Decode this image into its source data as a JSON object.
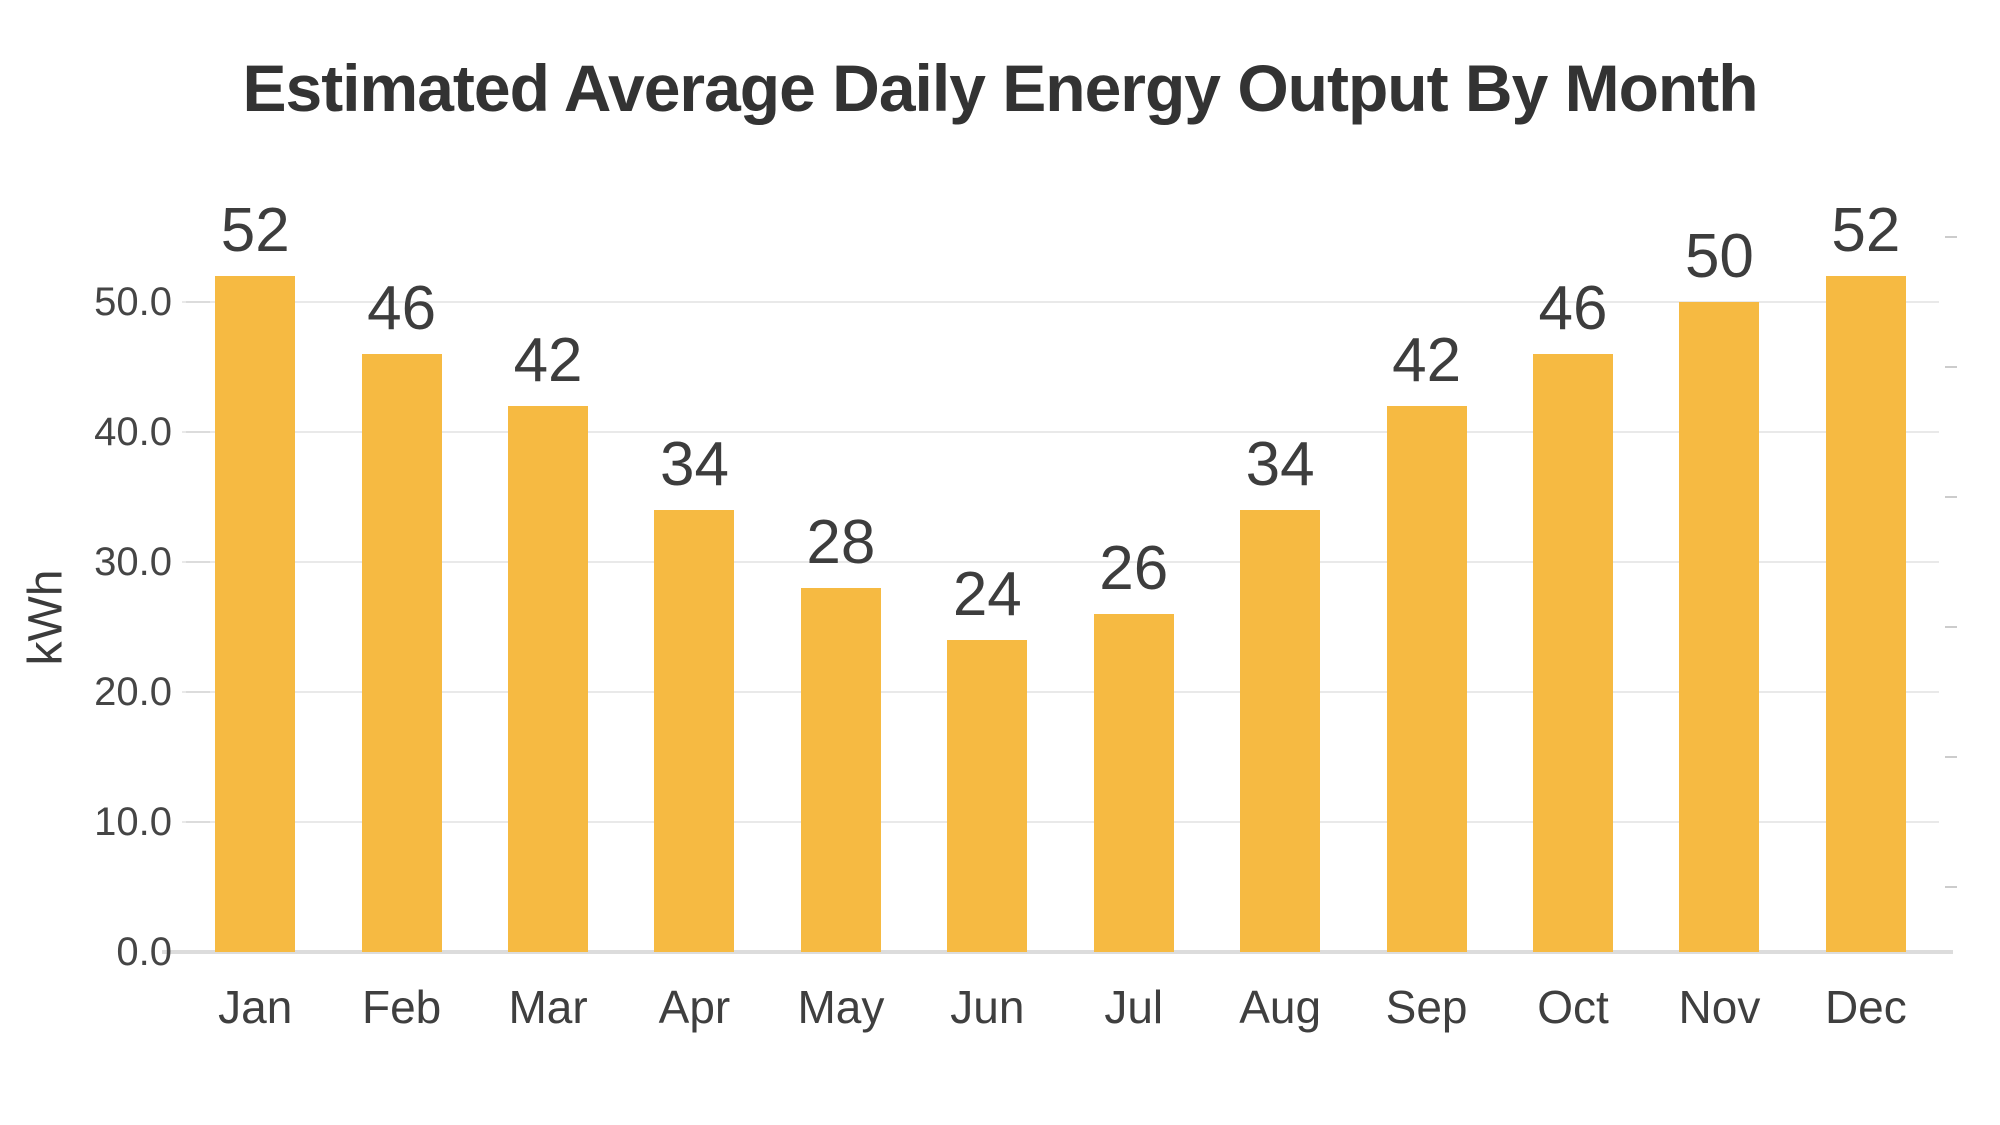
{
  "page": {
    "background_color": "#ffffff"
  },
  "chart_data": {
    "type": "bar",
    "title": "Estimated Average Daily Energy Output By Month",
    "xlabel": "",
    "ylabel": "kWh",
    "categories": [
      "Jan",
      "Feb",
      "Mar",
      "Apr",
      "May",
      "Jun",
      "Jul",
      "Aug",
      "Sep",
      "Oct",
      "Nov",
      "Dec"
    ],
    "values": [
      52,
      46,
      42,
      34,
      28,
      24,
      26,
      34,
      42,
      46,
      50,
      52
    ],
    "value_labels": [
      "52",
      "46",
      "42",
      "34",
      "28",
      "24",
      "26",
      "34",
      "42",
      "46",
      "50",
      "52"
    ],
    "yticks": [
      {
        "value": 0,
        "label": "0.0"
      },
      {
        "value": 10,
        "label": "10.0"
      },
      {
        "value": 20,
        "label": "20.0"
      },
      {
        "value": 30,
        "label": "30.0"
      },
      {
        "value": 40,
        "label": "40.0"
      },
      {
        "value": 50,
        "label": "50.0"
      }
    ],
    "minor_right_ticks": [
      5,
      15,
      25,
      35,
      45,
      55
    ],
    "ylim": [
      0,
      60
    ],
    "grid": "horizontal",
    "legend": "none",
    "colors": {
      "bar": "#F6BA42",
      "title": "#333333",
      "value_label": "#3d3d3d",
      "axis_text": "#454545",
      "gridline": "#e9e9e9",
      "baseline": "#dcdcdc"
    }
  }
}
